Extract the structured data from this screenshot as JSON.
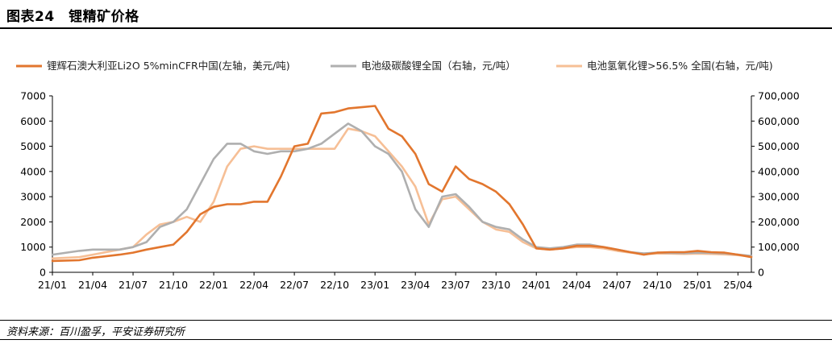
{
  "figure": {
    "title": "图表24　锂精矿价格",
    "source": "资料来源：百川盈孚，平安证券研究所"
  },
  "chart_data": {
    "type": "line",
    "x_ticks": [
      "21/01",
      "21/04",
      "21/07",
      "21/10",
      "22/01",
      "22/04",
      "22/07",
      "22/10",
      "23/01",
      "23/04",
      "23/07",
      "23/10",
      "24/01",
      "24/04",
      "24/07",
      "24/10",
      "25/01",
      "25/04"
    ],
    "x_range": [
      "2021-01",
      "2025-05"
    ],
    "y_left": {
      "min": 0,
      "max": 7000,
      "ticks": [
        "0",
        "1000",
        "2000",
        "3000",
        "4000",
        "5000",
        "6000",
        "7000"
      ]
    },
    "y_right": {
      "min": 0,
      "max": 700000,
      "ticks": [
        "0",
        "100,000",
        "200,000",
        "300,000",
        "400,000",
        "500,000",
        "600,000",
        "700,000"
      ]
    },
    "grid": false,
    "legend_position": "top",
    "series": [
      {
        "name": "锂辉石澳大利亚Li2O  5%minCFR中国(左轴，美元/吨)",
        "axis": "left",
        "color": "#E2762E",
        "points": [
          [
            "2021-01",
            450
          ],
          [
            "2021-03",
            480
          ],
          [
            "2021-04",
            580
          ],
          [
            "2021-06",
            700
          ],
          [
            "2021-07",
            780
          ],
          [
            "2021-08",
            900
          ],
          [
            "2021-09",
            1000
          ],
          [
            "2021-10",
            1100
          ],
          [
            "2021-11",
            1600
          ],
          [
            "2021-12",
            2300
          ],
          [
            "2022-01",
            2600
          ],
          [
            "2022-02",
            2700
          ],
          [
            "2022-03",
            2700
          ],
          [
            "2022-04",
            2800
          ],
          [
            "2022-05",
            2800
          ],
          [
            "2022-06",
            3800
          ],
          [
            "2022-07",
            5000
          ],
          [
            "2022-08",
            5100
          ],
          [
            "2022-09",
            6300
          ],
          [
            "2022-10",
            6350
          ],
          [
            "2022-11",
            6500
          ],
          [
            "2022-12",
            6550
          ],
          [
            "2023-01",
            6600
          ],
          [
            "2023-02",
            5700
          ],
          [
            "2023-03",
            5400
          ],
          [
            "2023-04",
            4700
          ],
          [
            "2023-05",
            3500
          ],
          [
            "2023-06",
            3200
          ],
          [
            "2023-07",
            4200
          ],
          [
            "2023-08",
            3700
          ],
          [
            "2023-09",
            3500
          ],
          [
            "2023-10",
            3200
          ],
          [
            "2023-11",
            2700
          ],
          [
            "2023-12",
            1900
          ],
          [
            "2024-01",
            950
          ],
          [
            "2024-02",
            900
          ],
          [
            "2024-03",
            950
          ],
          [
            "2024-04",
            1050
          ],
          [
            "2024-05",
            1050
          ],
          [
            "2024-06",
            1000
          ],
          [
            "2024-07",
            900
          ],
          [
            "2024-08",
            800
          ],
          [
            "2024-09",
            700
          ],
          [
            "2024-10",
            780
          ],
          [
            "2024-11",
            800
          ],
          [
            "2024-12",
            800
          ],
          [
            "2025-01",
            850
          ],
          [
            "2025-02",
            800
          ],
          [
            "2025-03",
            780
          ],
          [
            "2025-04",
            700
          ],
          [
            "2025-05",
            600
          ]
        ]
      },
      {
        "name": "电池级碳酸锂全国（右轴，元/吨）",
        "axis": "right",
        "color": "#AFAFAF",
        "points": [
          [
            "2021-01",
            70000
          ],
          [
            "2021-03",
            85000
          ],
          [
            "2021-04",
            90000
          ],
          [
            "2021-06",
            90000
          ],
          [
            "2021-07",
            100000
          ],
          [
            "2021-08",
            120000
          ],
          [
            "2021-09",
            180000
          ],
          [
            "2021-10",
            200000
          ],
          [
            "2021-11",
            250000
          ],
          [
            "2021-12",
            350000
          ],
          [
            "2022-01",
            450000
          ],
          [
            "2022-02",
            510000
          ],
          [
            "2022-03",
            510000
          ],
          [
            "2022-04",
            480000
          ],
          [
            "2022-05",
            470000
          ],
          [
            "2022-06",
            480000
          ],
          [
            "2022-07",
            480000
          ],
          [
            "2022-08",
            490000
          ],
          [
            "2022-09",
            510000
          ],
          [
            "2022-10",
            550000
          ],
          [
            "2022-11",
            590000
          ],
          [
            "2022-12",
            560000
          ],
          [
            "2023-01",
            500000
          ],
          [
            "2023-02",
            470000
          ],
          [
            "2023-03",
            400000
          ],
          [
            "2023-04",
            250000
          ],
          [
            "2023-05",
            180000
          ],
          [
            "2023-06",
            300000
          ],
          [
            "2023-07",
            310000
          ],
          [
            "2023-08",
            260000
          ],
          [
            "2023-09",
            200000
          ],
          [
            "2023-10",
            180000
          ],
          [
            "2023-11",
            170000
          ],
          [
            "2023-12",
            130000
          ],
          [
            "2024-01",
            100000
          ],
          [
            "2024-02",
            95000
          ],
          [
            "2024-03",
            100000
          ],
          [
            "2024-04",
            110000
          ],
          [
            "2024-05",
            110000
          ],
          [
            "2024-06",
            100000
          ],
          [
            "2024-07",
            90000
          ],
          [
            "2024-08",
            80000
          ],
          [
            "2024-09",
            75000
          ],
          [
            "2024-10",
            78000
          ],
          [
            "2024-11",
            77000
          ],
          [
            "2024-12",
            76000
          ],
          [
            "2025-01",
            78000
          ],
          [
            "2025-02",
            77000
          ],
          [
            "2025-03",
            75000
          ],
          [
            "2025-04",
            70000
          ],
          [
            "2025-05",
            65000
          ]
        ]
      },
      {
        "name": "电池氢氧化锂>56.5%  全国(右轴，元/吨)",
        "axis": "right",
        "color": "#F6BF96",
        "points": [
          [
            "2021-01",
            55000
          ],
          [
            "2021-03",
            60000
          ],
          [
            "2021-04",
            70000
          ],
          [
            "2021-06",
            90000
          ],
          [
            "2021-07",
            100000
          ],
          [
            "2021-08",
            150000
          ],
          [
            "2021-09",
            190000
          ],
          [
            "2021-10",
            200000
          ],
          [
            "2021-11",
            220000
          ],
          [
            "2021-12",
            200000
          ],
          [
            "2022-01",
            280000
          ],
          [
            "2022-02",
            420000
          ],
          [
            "2022-03",
            490000
          ],
          [
            "2022-04",
            500000
          ],
          [
            "2022-05",
            490000
          ],
          [
            "2022-06",
            490000
          ],
          [
            "2022-07",
            490000
          ],
          [
            "2022-08",
            490000
          ],
          [
            "2022-09",
            490000
          ],
          [
            "2022-10",
            490000
          ],
          [
            "2022-11",
            570000
          ],
          [
            "2022-12",
            560000
          ],
          [
            "2023-01",
            540000
          ],
          [
            "2023-02",
            480000
          ],
          [
            "2023-03",
            420000
          ],
          [
            "2023-04",
            340000
          ],
          [
            "2023-05",
            190000
          ],
          [
            "2023-06",
            290000
          ],
          [
            "2023-07",
            300000
          ],
          [
            "2023-08",
            250000
          ],
          [
            "2023-09",
            200000
          ],
          [
            "2023-10",
            170000
          ],
          [
            "2023-11",
            160000
          ],
          [
            "2023-12",
            120000
          ],
          [
            "2024-01",
            95000
          ],
          [
            "2024-02",
            90000
          ],
          [
            "2024-03",
            95000
          ],
          [
            "2024-04",
            100000
          ],
          [
            "2024-05",
            100000
          ],
          [
            "2024-06",
            95000
          ],
          [
            "2024-07",
            85000
          ],
          [
            "2024-08",
            78000
          ],
          [
            "2024-09",
            72000
          ],
          [
            "2024-10",
            74000
          ],
          [
            "2024-11",
            74000
          ],
          [
            "2024-12",
            73000
          ],
          [
            "2025-01",
            74000
          ],
          [
            "2025-02",
            73000
          ],
          [
            "2025-03",
            71000
          ],
          [
            "2025-04",
            68000
          ],
          [
            "2025-05",
            62000
          ]
        ]
      }
    ]
  }
}
